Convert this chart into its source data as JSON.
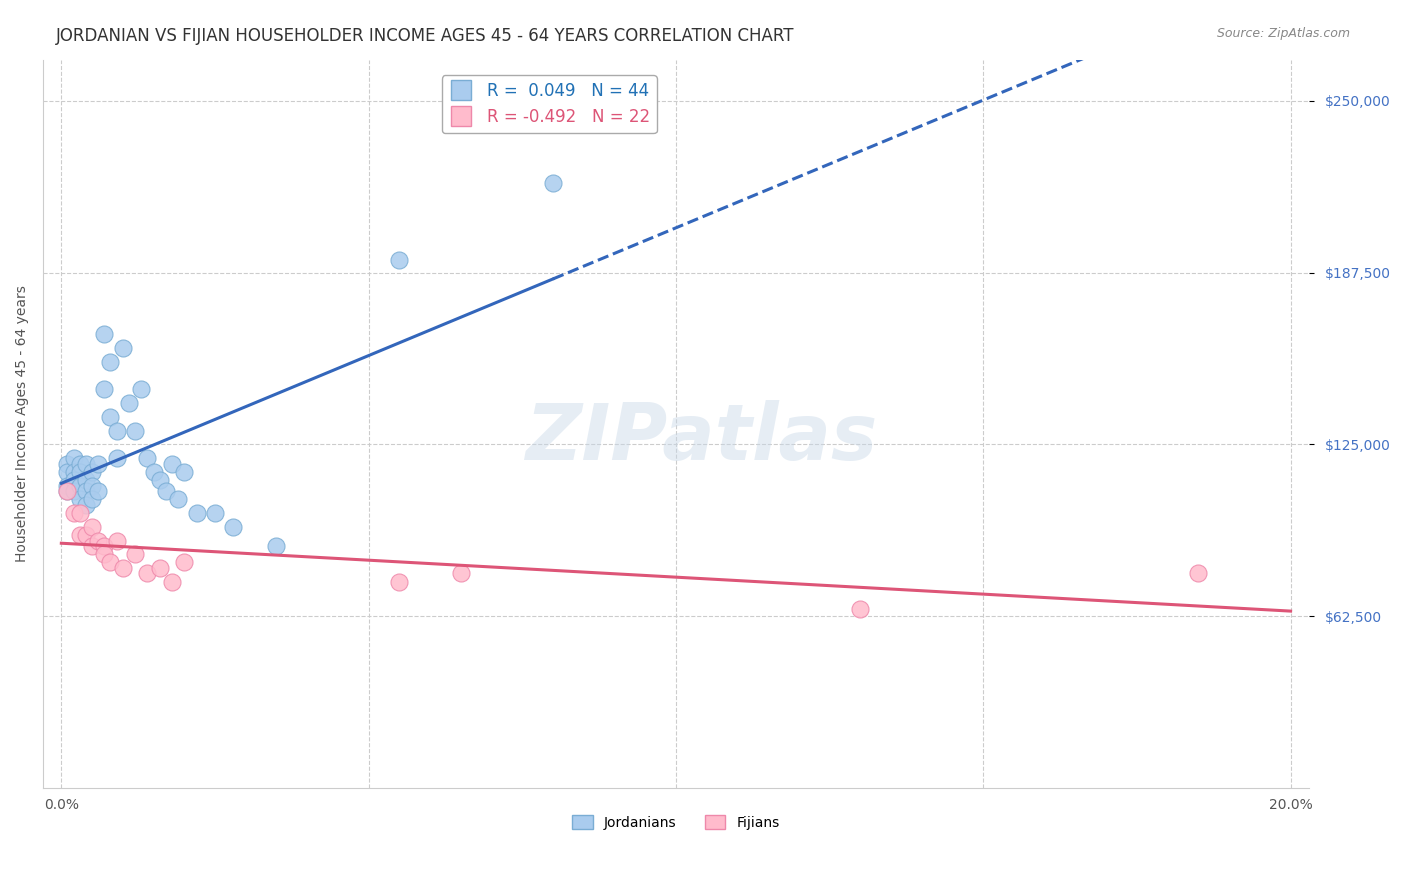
{
  "title": "JORDANIAN VS FIJIAN HOUSEHOLDER INCOME AGES 45 - 64 YEARS CORRELATION CHART",
  "source": "Source: ZipAtlas.com",
  "ylabel": "Householder Income Ages 45 - 64 years",
  "xlim": [
    0.0,
    0.2
  ],
  "ylim": [
    0,
    265000
  ],
  "yticks": [
    62500,
    125000,
    187500,
    250000
  ],
  "xticks": [
    0.0,
    0.05,
    0.1,
    0.15,
    0.2
  ],
  "jordanians_x": [
    0.001,
    0.001,
    0.001,
    0.001,
    0.002,
    0.002,
    0.002,
    0.002,
    0.003,
    0.003,
    0.003,
    0.003,
    0.004,
    0.004,
    0.004,
    0.004,
    0.005,
    0.005,
    0.005,
    0.006,
    0.006,
    0.007,
    0.007,
    0.008,
    0.008,
    0.009,
    0.009,
    0.01,
    0.011,
    0.012,
    0.013,
    0.014,
    0.015,
    0.016,
    0.017,
    0.018,
    0.019,
    0.02,
    0.022,
    0.025,
    0.028,
    0.035,
    0.055,
    0.08
  ],
  "jordanians_y": [
    118000,
    115000,
    110000,
    108000,
    120000,
    115000,
    112000,
    108000,
    118000,
    115000,
    110000,
    105000,
    118000,
    112000,
    108000,
    103000,
    115000,
    110000,
    105000,
    118000,
    108000,
    165000,
    145000,
    155000,
    135000,
    130000,
    120000,
    160000,
    140000,
    130000,
    145000,
    120000,
    115000,
    112000,
    108000,
    118000,
    105000,
    115000,
    100000,
    100000,
    95000,
    88000,
    192000,
    220000
  ],
  "fijians_x": [
    0.001,
    0.002,
    0.003,
    0.003,
    0.004,
    0.005,
    0.005,
    0.006,
    0.007,
    0.007,
    0.008,
    0.009,
    0.01,
    0.012,
    0.014,
    0.016,
    0.018,
    0.02,
    0.055,
    0.065,
    0.13,
    0.185
  ],
  "fijians_y": [
    108000,
    100000,
    100000,
    92000,
    92000,
    95000,
    88000,
    90000,
    88000,
    85000,
    82000,
    90000,
    80000,
    85000,
    78000,
    80000,
    75000,
    82000,
    75000,
    78000,
    65000,
    78000
  ],
  "jordanian_R": 0.049,
  "jordanian_N": 44,
  "fijian_R": -0.492,
  "fijian_N": 22,
  "jordan_color": "#aaccee",
  "jordan_edge_color": "#7aadd4",
  "fijian_color": "#ffbbcc",
  "fijian_edge_color": "#ee88aa",
  "jordan_line_color": "#3366bb",
  "fijian_line_color": "#dd5577",
  "background_color": "#ffffff",
  "grid_color": "#cccccc",
  "watermark": "ZIPatlas",
  "title_fontsize": 12,
  "label_fontsize": 10,
  "tick_fontsize": 10,
  "legend_fontsize": 12
}
